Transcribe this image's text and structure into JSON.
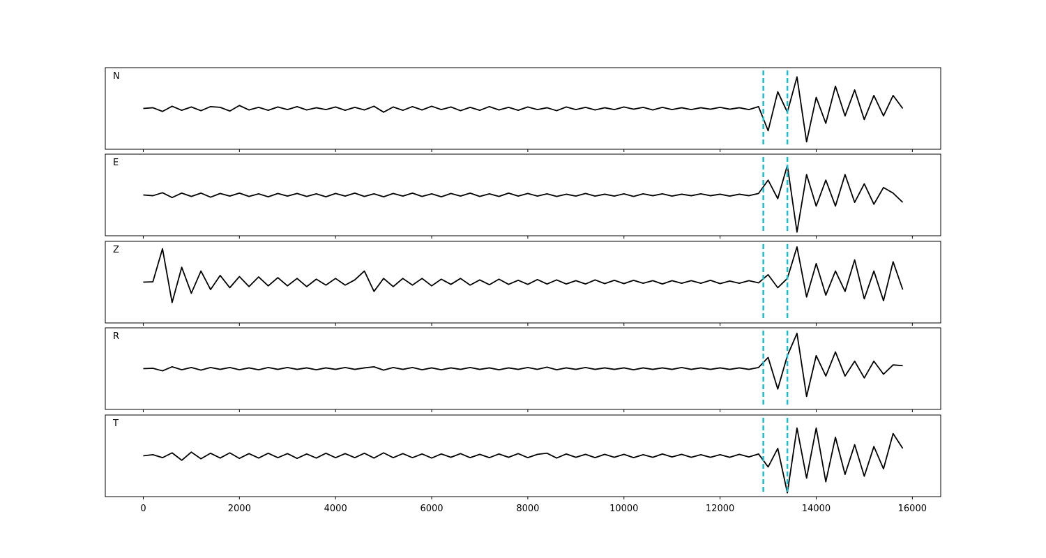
{
  "chart_data": {
    "type": "seismogram",
    "x": [
      0,
      200,
      400,
      600,
      800,
      1000,
      1200,
      1400,
      1600,
      1800,
      2000,
      2200,
      2400,
      2600,
      2800,
      3000,
      3200,
      3400,
      3600,
      3800,
      4000,
      4200,
      4400,
      4600,
      4800,
      5000,
      5200,
      5400,
      5600,
      5800,
      6000,
      6200,
      6400,
      6600,
      6800,
      7000,
      7200,
      7400,
      7600,
      7800,
      8000,
      8200,
      8400,
      8600,
      8800,
      9000,
      9200,
      9400,
      9600,
      9800,
      10000,
      10200,
      10400,
      10600,
      10800,
      11000,
      11200,
      11400,
      11600,
      11800,
      12000,
      12200,
      12400,
      12600,
      12800,
      13000,
      13200,
      13400,
      13600,
      13800,
      14000,
      14200,
      14400,
      14600,
      14800,
      15000,
      15200,
      15400,
      15600,
      15800
    ],
    "series": [
      {
        "name": "N",
        "color": "#000000",
        "values": [
          0,
          0.02,
          -0.08,
          0.06,
          -0.05,
          0.04,
          -0.06,
          0.05,
          0.03,
          -0.07,
          0.08,
          -0.04,
          0.03,
          -0.05,
          0.04,
          -0.03,
          0.05,
          -0.04,
          0.02,
          -0.03,
          0.04,
          -0.05,
          0.03,
          -0.04,
          0.06,
          -0.1,
          0.04,
          -0.05,
          0.05,
          -0.04,
          0.06,
          -0.03,
          0.04,
          -0.06,
          0.03,
          -0.05,
          0.05,
          -0.04,
          0.03,
          -0.05,
          0.04,
          -0.03,
          0.02,
          -0.06,
          0.04,
          -0.03,
          0.03,
          -0.04,
          0.02,
          -0.03,
          0.04,
          -0.02,
          0.03,
          -0.04,
          0.03,
          -0.03,
          0.02,
          -0.03,
          0.02,
          -0.02,
          0.03,
          -0.02,
          0.02,
          -0.03,
          0.05,
          -0.6,
          0.45,
          -0.1,
          0.85,
          -0.9,
          0.3,
          -0.4,
          0.6,
          -0.2,
          0.5,
          -0.3,
          0.35,
          -0.2,
          0.35,
          0
        ]
      },
      {
        "name": "E",
        "color": "#000000",
        "values": [
          0,
          -0.02,
          0.06,
          -0.07,
          0.05,
          -0.04,
          0.05,
          -0.06,
          0.04,
          -0.03,
          0.05,
          -0.04,
          0.03,
          -0.05,
          0.04,
          -0.03,
          0.04,
          -0.04,
          0.03,
          -0.05,
          0.04,
          -0.03,
          0.05,
          -0.04,
          0.03,
          -0.05,
          0.04,
          -0.03,
          0.05,
          -0.04,
          0.03,
          -0.05,
          0.04,
          -0.03,
          0.05,
          -0.04,
          0.03,
          -0.04,
          0.05,
          -0.03,
          0.04,
          -0.03,
          0.03,
          -0.04,
          0.02,
          -0.03,
          0.04,
          -0.03,
          0.02,
          -0.03,
          0.03,
          -0.04,
          0.03,
          -0.02,
          0.03,
          -0.03,
          0.02,
          -0.02,
          0.03,
          -0.02,
          0.02,
          -0.03,
          0.02,
          -0.02,
          0.04,
          0.4,
          -0.1,
          0.8,
          -1.0,
          0.55,
          -0.3,
          0.4,
          -0.3,
          0.55,
          -0.2,
          0.3,
          -0.25,
          0.2,
          0.05,
          -0.2
        ]
      },
      {
        "name": "Z",
        "color": "#000000",
        "values": [
          0,
          0.01,
          0.9,
          -0.55,
          0.4,
          -0.3,
          0.3,
          -0.2,
          0.18,
          -0.15,
          0.15,
          -0.12,
          0.14,
          -0.1,
          0.12,
          -0.1,
          0.1,
          -0.12,
          0.08,
          -0.08,
          0.1,
          -0.08,
          0.06,
          0.3,
          -0.25,
          0.1,
          -0.12,
          0.1,
          -0.08,
          0.1,
          -0.1,
          0.08,
          -0.06,
          0.1,
          -0.08,
          0.06,
          -0.07,
          0.08,
          -0.06,
          0.05,
          -0.06,
          0.07,
          -0.05,
          0.06,
          -0.05,
          0.04,
          -0.05,
          0.06,
          -0.04,
          0.05,
          -0.04,
          0.05,
          -0.03,
          0.04,
          -0.05,
          0.04,
          -0.03,
          0.04,
          -0.03,
          0.05,
          -0.04,
          0.03,
          -0.03,
          0.04,
          -0.02,
          0.2,
          -0.15,
          0.1,
          0.95,
          -0.4,
          0.5,
          -0.35,
          0.3,
          -0.25,
          0.6,
          -0.45,
          0.3,
          -0.5,
          0.55,
          -0.2
        ]
      },
      {
        "name": "R",
        "color": "#000000",
        "values": [
          0,
          0.01,
          -0.06,
          0.05,
          -0.03,
          0.03,
          -0.04,
          0.03,
          -0.02,
          0.03,
          -0.03,
          0.02,
          -0.03,
          0.03,
          -0.02,
          0.03,
          -0.02,
          0.02,
          -0.03,
          0.02,
          -0.02,
          0.03,
          -0.02,
          0.02,
          0.05,
          -0.04,
          0.03,
          -0.02,
          0.03,
          -0.03,
          0.02,
          -0.03,
          0.02,
          -0.02,
          0.03,
          -0.02,
          0.02,
          -0.03,
          0.02,
          -0.02,
          0.03,
          -0.02,
          0.04,
          -0.03,
          0.02,
          -0.02,
          0.03,
          -0.02,
          0.02,
          -0.02,
          0.02,
          -0.03,
          0.02,
          -0.02,
          0.02,
          -0.02,
          0.03,
          -0.02,
          0.02,
          -0.02,
          0.02,
          -0.02,
          0.02,
          -0.02,
          0.03,
          0.3,
          -0.55,
          0.35,
          0.95,
          -0.75,
          0.35,
          -0.2,
          0.45,
          -0.2,
          0.2,
          -0.25,
          0.2,
          -0.15,
          0.1,
          0.08
        ]
      },
      {
        "name": "T",
        "color": "#000000",
        "values": [
          0,
          0.03,
          -0.05,
          0.08,
          -0.12,
          0.1,
          -0.08,
          0.07,
          -0.06,
          0.08,
          -0.07,
          0.06,
          -0.06,
          0.07,
          -0.05,
          0.06,
          -0.07,
          0.05,
          -0.06,
          0.07,
          -0.05,
          0.06,
          -0.05,
          0.07,
          -0.06,
          0.08,
          -0.05,
          0.06,
          -0.05,
          0.05,
          -0.06,
          0.05,
          -0.04,
          0.06,
          -0.05,
          0.04,
          -0.05,
          0.05,
          -0.04,
          0.06,
          -0.05,
          0.04,
          0.07,
          -0.06,
          0.05,
          -0.04,
          0.04,
          -0.05,
          0.04,
          -0.04,
          0.04,
          -0.05,
          0.03,
          -0.04,
          0.05,
          -0.03,
          0.04,
          -0.04,
          0.03,
          -0.04,
          0.03,
          -0.04,
          0.04,
          -0.03,
          0.05,
          -0.3,
          0.2,
          -1.0,
          0.75,
          -0.6,
          0.75,
          -0.7,
          0.5,
          -0.5,
          0.3,
          -0.55,
          0.25,
          -0.35,
          0.6,
          0.2
        ]
      }
    ],
    "picks": [
      12900,
      13400
    ],
    "pick_color": "#17becf",
    "xlim": [
      -790,
      16590
    ],
    "xticks": [
      0,
      2000,
      4000,
      6000,
      8000,
      10000,
      12000,
      14000,
      16000
    ],
    "ylim": [
      -1.1,
      1.1
    ]
  }
}
